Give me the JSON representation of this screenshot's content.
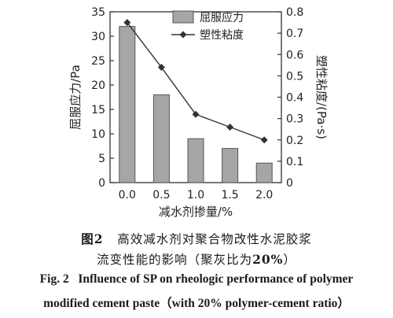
{
  "chart_data": {
    "type": "bar",
    "x_categories": [
      "0.0",
      "0.5",
      "1.0",
      "1.5",
      "2.0"
    ],
    "xlabel": "减水剂掺量/%",
    "left_axis": {
      "label": "屈服应力/Pa",
      "ylim": [
        0,
        35
      ],
      "ticks": [
        "0",
        "5",
        "10",
        "15",
        "20",
        "25",
        "30",
        "35"
      ]
    },
    "right_axis": {
      "label": "塑性粘度/(Pa·s)",
      "ylim": [
        0,
        0.8
      ],
      "ticks": [
        "0",
        "0.1",
        "0.2",
        "0.3",
        "0.4",
        "0.5",
        "0.6",
        "0.7",
        "0.8"
      ]
    },
    "series": [
      {
        "name": "屈服应力",
        "kind": "bar",
        "axis": "left",
        "values": [
          32,
          18,
          9,
          7,
          4
        ],
        "color": "#a6a6a6"
      },
      {
        "name": "塑性粘度",
        "kind": "line",
        "axis": "right",
        "marker": "diamond",
        "values": [
          0.75,
          0.54,
          0.32,
          0.26,
          0.2
        ],
        "color": "#333333"
      }
    ],
    "legend_position": "top-right",
    "grid": false
  },
  "caption": {
    "cn_label": "图",
    "cn_num": "2",
    "cn_line1": "高效减水剂对聚合物改性水泥胶浆",
    "cn_line2_a": "流变性能的影响（聚灰比为",
    "cn_line2_pct": "20%",
    "cn_line2_b": "）",
    "en_label": "Fig. 2",
    "en_line1": "Influence of SP on rheologic performance of polymer",
    "en_line2": "modified cement paste（with 20% polymer-cement ratio）"
  }
}
